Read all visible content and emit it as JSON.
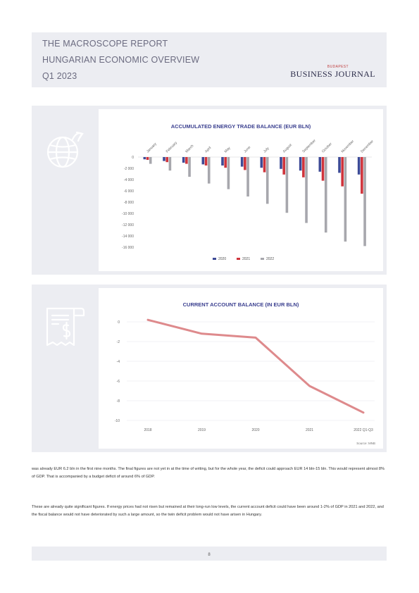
{
  "header": {
    "line1": "THE MACROSCOPE REPORT",
    "line2": "HUNGARIAN ECONOMIC OVERVIEW",
    "line3": "Q1 2023",
    "logo_small": "BUDAPEST",
    "logo_big": "BUSINESS JOURNAL"
  },
  "colors": {
    "panel_bg": "#ecedf2",
    "title_blue": "#3a3f8f",
    "series_2020": "#3d4a96",
    "series_2021": "#d0343c",
    "series_2022": "#a7a7ad",
    "line_red": "#de8a8c"
  },
  "icons": [
    "globe-icon",
    "receipt-dollar-icon"
  ],
  "chart_data": [
    {
      "type": "bar",
      "title": "ACCUMULATED ENERGY TRADE BALANCE (EUR BLN)",
      "categories": [
        "January",
        "February",
        "March",
        "April",
        "May",
        "June",
        "July",
        "August",
        "September",
        "October",
        "November",
        "December"
      ],
      "series": [
        {
          "name": "2020",
          "values": [
            -400,
            -700,
            -1000,
            -1300,
            -1500,
            -1700,
            -1900,
            -2100,
            -2400,
            -2600,
            -2800,
            -3100
          ]
        },
        {
          "name": "2021",
          "values": [
            -500,
            -900,
            -1200,
            -1500,
            -1900,
            -2300,
            -2700,
            -3100,
            -3600,
            -4200,
            -5200,
            -6500
          ]
        },
        {
          "name": "2022",
          "values": [
            -1200,
            -2400,
            -3500,
            -4700,
            -5700,
            -7000,
            -8300,
            -9900,
            -11700,
            -13400,
            -15000,
            -15800
          ]
        }
      ],
      "ylim": [
        -16000,
        0
      ],
      "yticks": [
        "0",
        "-2 000",
        "-4 000",
        "-6 000",
        "-8 000",
        "-10 000",
        "-12 000",
        "-14 000",
        "-16 000"
      ],
      "legend": [
        "2020",
        "2021",
        "2022"
      ],
      "legend_position": "bottom",
      "grid": false
    },
    {
      "type": "line",
      "title": "CURRENT ACCOUNT BALANCE (IN EUR BLN)",
      "categories": [
        "2018",
        "2019",
        "2020",
        "2021",
        "2022 Q1-Q3"
      ],
      "series": [
        {
          "name": "",
          "values": [
            0.2,
            -1.2,
            -1.6,
            -6.5,
            -9.2
          ]
        }
      ],
      "ylim": [
        -10,
        0
      ],
      "yticks": [
        "0",
        "-2",
        "-4",
        "-6",
        "-8",
        "-10"
      ],
      "grid": true,
      "source": "Source: MNB"
    }
  ],
  "text": {
    "para1": "was already EUR 6.2 bln in the first nine months. The final figures are not yet in at the time of writing, but for the whole year, the deficit could approach EUR 14 bln-15 bln. This would represent almost 8% of GDP. That is accompanied by a budget deficit of around 6% of GDP.",
    "para2": "These are already quite significant figures. If energy prices had not risen but remained at their long-run low levels, the current account deficit could have been around 1-2% of GDP in 2021 and 2022, and the fiscal balance would not have deteriorated by such a large amount, so the twin deficit problem would not have arisen in Hungary."
  },
  "footer": {
    "page": "8"
  }
}
